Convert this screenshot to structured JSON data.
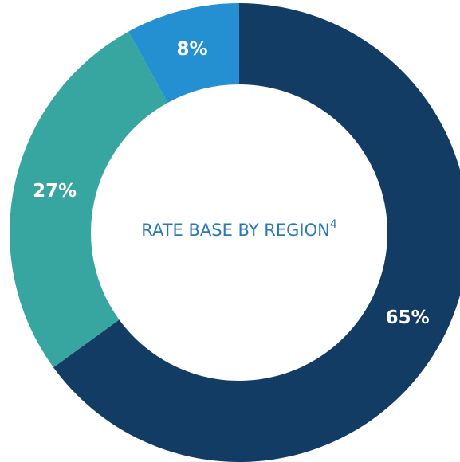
{
  "chart_data": {
    "type": "donut",
    "title": "RATE BASE BY REGION",
    "title_superscript": "4",
    "values": [
      65,
      27,
      8
    ],
    "value_labels": [
      "65%",
      "27%",
      "8%"
    ],
    "colors": [
      "#123c63",
      "#38a6a0",
      "#2490d2"
    ]
  }
}
